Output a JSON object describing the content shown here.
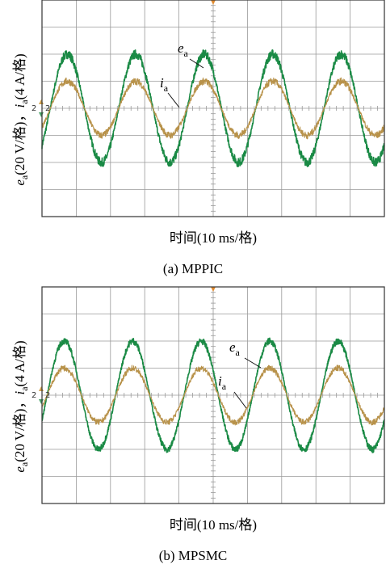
{
  "colors": {
    "ea": "#1a8a45",
    "ia": "#b8924a",
    "grid": "#9a9a9a",
    "frame": "#333333"
  },
  "chart_data": [
    {
      "type": "line",
      "caption": "(a) MPPIC",
      "xlabel": "时间(10 ms/格)",
      "ylabel": "e_a(20 V/格)，i_a(4 A/格)",
      "ylabel_parts": {
        "e": "e",
        "a1": "a",
        "p1": "(20 V/格)，",
        "i": "i",
        "a2": "a",
        "p2": "(4 A/格)"
      },
      "channel_marker": "2",
      "x_divisions": 10,
      "y_divisions": 8,
      "x_unit": "ms",
      "xlim": [
        0,
        100
      ],
      "grid": true,
      "annotations": [
        {
          "sym": "e",
          "sub": "a"
        },
        {
          "sym": "i",
          "sub": "a"
        }
      ],
      "series": [
        {
          "name": "e_a",
          "unit": "V",
          "amplitude": 40,
          "period_ms": 20,
          "phase_ms": 2.4,
          "noise": 2.2
        },
        {
          "name": "i_a",
          "unit": "A",
          "amplitude": 4,
          "period_ms": 20,
          "phase_ms": 2.4,
          "noise": 0.35
        }
      ]
    },
    {
      "type": "line",
      "caption": "(b) MPSMC",
      "xlabel": "时间(10 ms/格)",
      "ylabel": "e_a(20 V/格)，i_a(4 A/格)",
      "ylabel_parts": {
        "e": "e",
        "a1": "a",
        "p1": "(20 V/格)，",
        "i": "i",
        "a2": "a",
        "p2": "(4 A/格)"
      },
      "channel_marker": "2",
      "x_divisions": 10,
      "y_divisions": 8,
      "x_unit": "ms",
      "xlim": [
        0,
        100
      ],
      "grid": true,
      "annotations": [
        {
          "sym": "e",
          "sub": "a"
        },
        {
          "sym": "i",
          "sub": "a"
        }
      ],
      "series": [
        {
          "name": "e_a",
          "unit": "V",
          "amplitude": 40,
          "period_ms": 20,
          "phase_ms": 1.5,
          "noise": 1.6
        },
        {
          "name": "i_a",
          "unit": "A",
          "amplitude": 4,
          "period_ms": 20,
          "phase_ms": 1.5,
          "noise": 0.3
        }
      ]
    }
  ]
}
